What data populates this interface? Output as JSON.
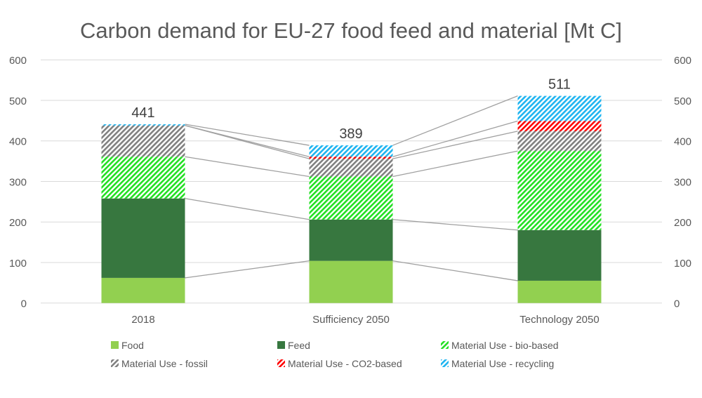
{
  "chart_data": {
    "type": "bar",
    "stacked": true,
    "title": "Carbon demand for EU-27 food feed and material [Mt C]",
    "xlabel": "",
    "ylabel": "",
    "ylim": [
      0,
      600
    ],
    "yticks": [
      0,
      100,
      200,
      300,
      400,
      500,
      600
    ],
    "secondary_y_axis": true,
    "grid": true,
    "legend_position": "bottom",
    "series_lines": true,
    "categories": [
      "2018",
      "Sufficiency 2050",
      "Technology 2050"
    ],
    "totals": [
      441,
      389,
      511
    ],
    "series": [
      {
        "name": "Food",
        "values": [
          62,
          104,
          55
        ],
        "color": "#92d050",
        "pattern": "solid"
      },
      {
        "name": "Feed",
        "values": [
          196,
          102,
          125
        ],
        "color": "#37773f",
        "pattern": "solid"
      },
      {
        "name": "Material Use - bio-based",
        "values": [
          103,
          106,
          195
        ],
        "color": "#22e022",
        "pattern": "diagonal-stripes"
      },
      {
        "name": "Material Use - fossil",
        "values": [
          77,
          44,
          49
        ],
        "color": "#808080",
        "pattern": "diagonal-stripes"
      },
      {
        "name": "Material Use - CO2-based",
        "values": [
          0,
          5,
          25
        ],
        "color": "#ff0000",
        "pattern": "diagonal-stripes"
      },
      {
        "name": "Material Use - recycling",
        "values": [
          3,
          28,
          62
        ],
        "color": "#1eb4f0",
        "pattern": "diagonal-stripes"
      }
    ]
  }
}
